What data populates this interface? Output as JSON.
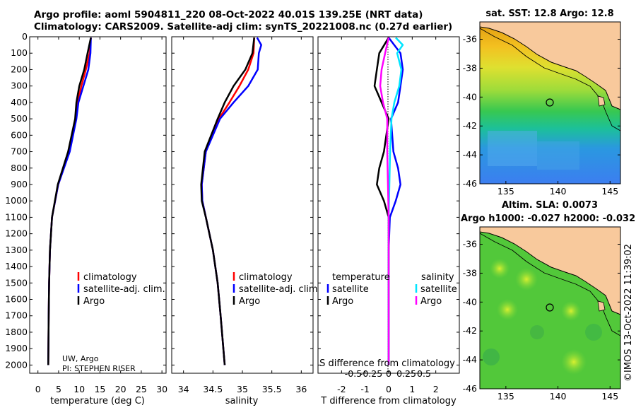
{
  "header": {
    "line1": "Argo profile: aoml 5904811_220 08-Oct-2022 40.01S 139.25E (NRT data)",
    "line2": "Climatology: CARS2009. Satellite-adj clim: synTS_20221008.nc (0.27d earlier)"
  },
  "colors": {
    "climatology": "#ff0000",
    "satellite": "#0000ff",
    "argo": "#000000",
    "sal_satellite": "#00e5ff",
    "sal_argo": "#ff00ff"
  },
  "chart_data": [
    {
      "type": "line",
      "name": "temperature-panel",
      "xlabel": "temperature (deg C)",
      "xlim": [
        -2,
        31
      ],
      "xticks": [
        0,
        5,
        10,
        15,
        20,
        25,
        30
      ],
      "ylim": [
        2050,
        0
      ],
      "yticks": [
        0,
        100,
        200,
        300,
        400,
        500,
        600,
        700,
        800,
        900,
        1000,
        1100,
        1200,
        1300,
        1400,
        1500,
        1600,
        1700,
        1800,
        1900,
        2000
      ],
      "legend": [
        "climatology",
        "satellite-adj. clim.",
        "Argo"
      ],
      "legend_placement": "lower-right",
      "annotation": [
        "UW, Argo",
        "PI: STEPHEN RISER"
      ],
      "series": [
        {
          "name": "climatology",
          "depth": [
            5,
            100,
            200,
            300,
            400,
            500,
            700,
            900,
            1100,
            1300,
            1500,
            1700,
            2000
          ],
          "values": [
            12.8,
            12.5,
            11.6,
            10.5,
            9.6,
            9.2,
            7.6,
            4.9,
            3.4,
            2.9,
            2.7,
            2.6,
            2.5
          ]
        },
        {
          "name": "satellite-adj. clim.",
          "depth": [
            5,
            100,
            200,
            300,
            400,
            500,
            700,
            900,
            1100,
            1300,
            1500,
            1700,
            2000
          ],
          "values": [
            12.8,
            12.7,
            12.2,
            11.0,
            9.8,
            9.3,
            7.7,
            4.9,
            3.4,
            2.9,
            2.7,
            2.6,
            2.5
          ]
        },
        {
          "name": "Argo",
          "depth": [
            5,
            100,
            200,
            300,
            400,
            500,
            700,
            900,
            1100,
            1300,
            1500,
            1700,
            2000
          ],
          "values": [
            12.8,
            12.0,
            11.2,
            10.0,
            9.3,
            9.0,
            7.3,
            4.8,
            3.4,
            2.9,
            2.7,
            2.6,
            2.5
          ]
        }
      ]
    },
    {
      "type": "line",
      "name": "salinity-panel",
      "xlabel": "salinity",
      "xlim": [
        33.8,
        36.2
      ],
      "xticks": [
        34,
        34.5,
        35,
        35.5,
        36
      ],
      "ylim": [
        2050,
        0
      ],
      "legend": [
        "climatology",
        "satellite-adj. clim.",
        "Argo"
      ],
      "legend_placement": "lower-right",
      "series": [
        {
          "name": "climatology",
          "depth": [
            5,
            100,
            200,
            300,
            400,
            500,
            700,
            900,
            1000,
            1100,
            1300,
            1500,
            1700,
            2000
          ],
          "values": [
            35.2,
            35.19,
            35.1,
            34.95,
            34.78,
            34.6,
            34.38,
            34.31,
            34.32,
            34.38,
            34.5,
            34.58,
            34.63,
            34.7
          ]
        },
        {
          "name": "satellite-adj. clim.",
          "depth": [
            5,
            50,
            100,
            200,
            300,
            400,
            500,
            700,
            900,
            1000,
            1100,
            1300,
            1500,
            1700,
            2000
          ],
          "values": [
            35.25,
            35.32,
            35.28,
            35.26,
            35.1,
            34.85,
            34.62,
            34.38,
            34.31,
            34.32,
            34.38,
            34.5,
            34.58,
            34.63,
            34.7
          ]
        },
        {
          "name": "Argo",
          "depth": [
            5,
            100,
            200,
            300,
            400,
            500,
            700,
            900,
            1000,
            1100,
            1300,
            1500,
            1700,
            2000
          ],
          "values": [
            35.2,
            35.17,
            35.05,
            34.85,
            34.7,
            34.58,
            34.36,
            34.3,
            34.31,
            34.38,
            34.5,
            34.58,
            34.63,
            34.7
          ]
        }
      ]
    },
    {
      "type": "line",
      "name": "difference-panel",
      "xlabel": "T difference from climatology",
      "xlabel2": "S difference from climatology",
      "xlim": [
        -3,
        3
      ],
      "xticks": [
        -2,
        -1,
        0,
        1,
        2
      ],
      "xticks2": [
        -0.5,
        -0.25,
        0,
        0.25,
        0.5
      ],
      "ylim": [
        2050,
        0
      ],
      "legend_temperature": {
        "title": "temperature",
        "entries": [
          "satellite",
          "Argo"
        ]
      },
      "legend_salinity": {
        "title": "salinity",
        "entries": [
          "satellite",
          "Argo"
        ]
      },
      "series": [
        {
          "name": "temperature satellite",
          "depth": [
            5,
            100,
            200,
            300,
            400,
            500,
            700,
            800,
            900,
            1000,
            1100,
            1300,
            1600,
            2000
          ],
          "values": [
            0,
            0.5,
            0.6,
            0.5,
            0.4,
            0.1,
            0.2,
            0.4,
            0.5,
            0.3,
            0.05,
            0,
            0,
            0
          ]
        },
        {
          "name": "temperature Argo",
          "depth": [
            5,
            100,
            200,
            300,
            400,
            500,
            700,
            800,
            900,
            1000,
            1100,
            1300,
            1600,
            2000
          ],
          "values": [
            0,
            -0.4,
            -0.5,
            -0.6,
            -0.3,
            0,
            -0.2,
            -0.4,
            -0.5,
            -0.2,
            0,
            0,
            0,
            0
          ]
        },
        {
          "name": "salinity satellite",
          "depth": [
            5,
            50,
            100,
            200,
            300,
            400,
            500,
            700,
            900,
            1100,
            1300,
            1600,
            2000
          ],
          "values": [
            0.1,
            0.2,
            0.12,
            0.18,
            0.15,
            0.08,
            0.04,
            0.02,
            0.01,
            0,
            0,
            0,
            0
          ]
        },
        {
          "name": "salinity Argo",
          "depth": [
            5,
            100,
            200,
            300,
            400,
            500,
            700,
            900,
            1100,
            1300,
            1600,
            2000
          ],
          "values": [
            0,
            -0.05,
            -0.1,
            -0.12,
            -0.08,
            -0.02,
            -0.02,
            -0.01,
            0,
            0,
            0,
            0
          ]
        }
      ]
    }
  ],
  "maps": [
    {
      "title": "sat. SST: 12.8 Argo: 12.8",
      "xticks": [
        135,
        140,
        145
      ],
      "yticks": [
        -36,
        -38,
        -40,
        -42,
        -44,
        -46
      ],
      "xlim": [
        132.5,
        146
      ],
      "ylim": [
        -46,
        -34.8
      ]
    },
    {
      "title1": "Altim. SLA: 0.0073",
      "title2": "Argo h1000: -0.027 h2000: -0.032",
      "xticks": [
        135,
        140,
        145
      ],
      "yticks": [
        -36,
        -38,
        -40,
        -42,
        -44,
        -46
      ],
      "xlim": [
        132.5,
        146
      ],
      "ylim": [
        -46,
        -34.8
      ]
    }
  ],
  "profile_location": {
    "lon": 139.25,
    "lat": -40.01
  },
  "credit": "©IMOS 13-Oct-2022 11:39:02"
}
